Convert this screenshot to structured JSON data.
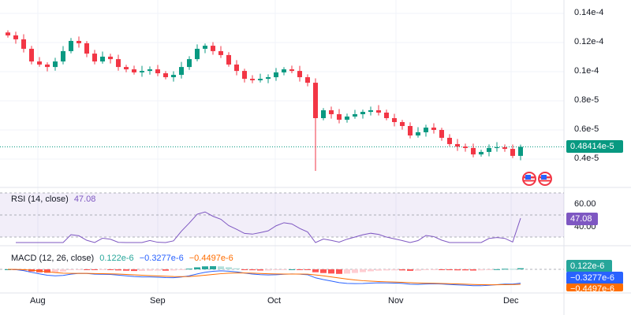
{
  "chart_data": {
    "type": "candlestick",
    "price_unit": "e-5",
    "closes": [
      12.49,
      12.22,
      11.57,
      10.7,
      10.49,
      10.32,
      10.7,
      11.41,
      12.11,
      11.95,
      11.24,
      10.7,
      11.03,
      10.86,
      10.32,
      10.16,
      9.95,
      10.05,
      10.16,
      9.89,
      9.62,
      9.78,
      10.32,
      10.86,
      11.57,
      11.78,
      11.41,
      11.14,
      10.49,
      10.05,
      9.51,
      9.41,
      9.51,
      9.62,
      9.95,
      10.16,
      10.05,
      9.62,
      9.24,
      6.81,
      7.35,
      7.08,
      6.7,
      6.92,
      7.08,
      7.24,
      7.35,
      7.19,
      6.81,
      6.54,
      6.27,
      5.62,
      5.84,
      6.16,
      6.0,
      5.46,
      5.03,
      4.86,
      4.76,
      4.32,
      4.49,
      4.76,
      4.81,
      4.7,
      4.22,
      4.84
    ],
    "crash_low": 3.19,
    "price_ticks": [
      "0.14e-4",
      "0.12e-4",
      "0.1e-4",
      "0.8e-5",
      "0.6e-5",
      "0.4e-5"
    ],
    "price_tick_values": [
      14,
      12,
      10,
      8,
      6,
      4
    ],
    "last_price": "0.48414e-5",
    "x_ticks": [
      "Aug",
      "Sep",
      "Oct",
      "Nov",
      "Dec"
    ],
    "up_color": "#089981",
    "down_color": "#f23645"
  },
  "rsi": {
    "title": "RSI (14, close)",
    "value": "47.08",
    "ticks": [
      "60.00",
      "40.00"
    ],
    "color": "#7e57c2"
  },
  "macd": {
    "title": "MACD (12, 26, close)",
    "hist": "0.122e-6",
    "macd": "−0.3277e-6",
    "signal": "−0.4497e-6",
    "hist_color": "#26a69a",
    "macd_color": "#2962ff",
    "signal_color": "#ff6d00"
  }
}
